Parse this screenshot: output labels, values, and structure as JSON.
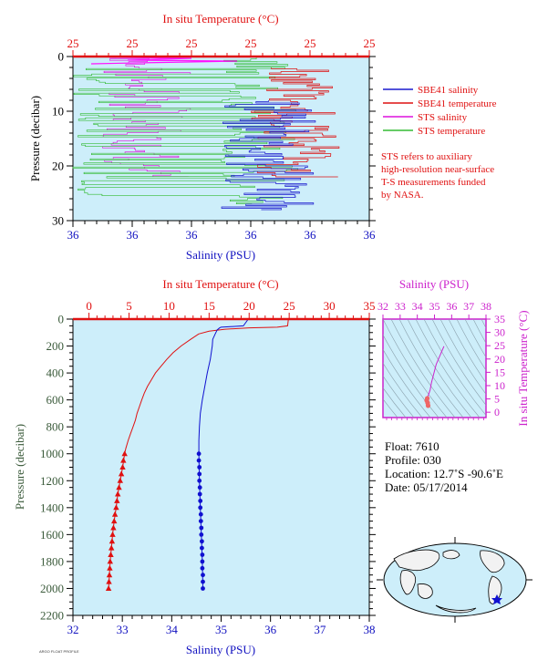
{
  "chart_data": [
    {
      "type": "line",
      "panel": "top-profile",
      "top_axis_label": "In situ Temperature (°C)",
      "top_ticks": [
        "25",
        "25",
        "25",
        "25",
        "25",
        "25"
      ],
      "bottom_axis_label": "Salinity (PSU)",
      "bottom_ticks": [
        "36",
        "36",
        "36",
        "36",
        "36",
        "36"
      ],
      "y_label": "Pressure (decibar)",
      "y_ticks": [
        "0",
        "10",
        "20",
        "30"
      ],
      "ylim": [
        30,
        0
      ],
      "legend": [
        "SBE41 salinity",
        "SBE41 temperature",
        "STS salinity",
        "STS temperature"
      ],
      "legend_colors": [
        "#1a1acd",
        "#dd1111",
        "#dd11dd",
        "#33bb33"
      ],
      "note": [
        "STS refers to auxiliary",
        "high-resolution near-surface",
        "T-S measurements funded",
        "by NASA."
      ]
    },
    {
      "type": "line",
      "panel": "full-profile",
      "top_axis_label": "In situ Temperature (°C)",
      "top_ticks": [
        "0",
        "5",
        "10",
        "15",
        "20",
        "25",
        "30",
        "35"
      ],
      "xlim_temperature": [
        0,
        35
      ],
      "bottom_axis_label": "Salinity (PSU)",
      "bottom_ticks": [
        "32",
        "33",
        "34",
        "35",
        "36",
        "37",
        "38"
      ],
      "xlim_salinity": [
        32,
        38
      ],
      "y_label": "Pressure (decibar)",
      "y_ticks": [
        "0",
        "200",
        "400",
        "600",
        "800",
        "1000",
        "1200",
        "1400",
        "1600",
        "1800",
        "2000",
        "2200"
      ],
      "ylim": [
        2200,
        0
      ],
      "series": [
        {
          "name": "temperature",
          "color": "#e01010",
          "points": [
            [
              24.9,
              0
            ],
            [
              24.8,
              50
            ],
            [
              23.5,
              60
            ],
            [
              20,
              65
            ],
            [
              17,
              75
            ],
            [
              15,
              90
            ],
            [
              13.7,
              110
            ],
            [
              12.7,
              150
            ],
            [
              11.5,
              200
            ],
            [
              10.5,
              250
            ],
            [
              9.7,
              300
            ],
            [
              9,
              350
            ],
            [
              8.3,
              400
            ],
            [
              7.8,
              450
            ],
            [
              7.3,
              500
            ],
            [
              6.9,
              550
            ],
            [
              6.6,
              600
            ],
            [
              6.3,
              650
            ],
            [
              6.0,
              700
            ],
            [
              5.8,
              750
            ],
            [
              5.5,
              800
            ],
            [
              5.2,
              850
            ],
            [
              4.9,
              900
            ],
            [
              4.6,
              960
            ],
            [
              4.45,
              1000
            ],
            [
              4.2,
              1100
            ],
            [
              3.9,
              1200
            ],
            [
              3.6,
              1300
            ],
            [
              3.4,
              1400
            ],
            [
              3.15,
              1500
            ],
            [
              2.95,
              1600
            ],
            [
              2.8,
              1700
            ],
            [
              2.65,
              1800
            ],
            [
              2.55,
              1900
            ],
            [
              2.45,
              2000
            ]
          ],
          "marker_points": [
            [
              4.45,
              1000
            ],
            [
              4.3,
              1050
            ],
            [
              4.2,
              1100
            ],
            [
              4.05,
              1150
            ],
            [
              3.9,
              1200
            ],
            [
              3.75,
              1250
            ],
            [
              3.6,
              1300
            ],
            [
              3.5,
              1350
            ],
            [
              3.4,
              1400
            ],
            [
              3.25,
              1450
            ],
            [
              3.15,
              1500
            ],
            [
              3.05,
              1550
            ],
            [
              2.95,
              1600
            ],
            [
              2.88,
              1650
            ],
            [
              2.8,
              1700
            ],
            [
              2.72,
              1750
            ],
            [
              2.65,
              1800
            ],
            [
              2.6,
              1850
            ],
            [
              2.55,
              1900
            ],
            [
              2.5,
              1950
            ],
            [
              2.45,
              2000
            ]
          ]
        },
        {
          "name": "salinity",
          "color": "#1010d0",
          "points": [
            [
              35.55,
              0
            ],
            [
              35.45,
              50
            ],
            [
              35.0,
              60
            ],
            [
              34.97,
              65
            ],
            [
              34.92,
              80
            ],
            [
              34.88,
              110
            ],
            [
              34.83,
              150
            ],
            [
              34.82,
              200
            ],
            [
              34.8,
              250
            ],
            [
              34.78,
              300
            ],
            [
              34.72,
              400
            ],
            [
              34.67,
              500
            ],
            [
              34.62,
              600
            ],
            [
              34.58,
              700
            ],
            [
              34.56,
              800
            ],
            [
              34.55,
              900
            ],
            [
              34.55,
              1000
            ],
            [
              34.56,
              1200
            ],
            [
              34.58,
              1400
            ],
            [
              34.6,
              1600
            ],
            [
              34.62,
              1800
            ],
            [
              34.63,
              2000
            ]
          ],
          "marker_points": [
            [
              34.55,
              1000
            ],
            [
              34.55,
              1050
            ],
            [
              34.56,
              1100
            ],
            [
              34.56,
              1150
            ],
            [
              34.56,
              1200
            ],
            [
              34.57,
              1250
            ],
            [
              34.57,
              1300
            ],
            [
              34.58,
              1350
            ],
            [
              34.58,
              1400
            ],
            [
              34.59,
              1450
            ],
            [
              34.59,
              1500
            ],
            [
              34.6,
              1550
            ],
            [
              34.6,
              1600
            ],
            [
              34.61,
              1650
            ],
            [
              34.61,
              1700
            ],
            [
              34.62,
              1750
            ],
            [
              34.62,
              1800
            ],
            [
              34.62,
              1850
            ],
            [
              34.63,
              1900
            ],
            [
              34.63,
              1950
            ],
            [
              34.63,
              2000
            ]
          ]
        }
      ]
    },
    {
      "type": "scatter",
      "panel": "ts-diagram",
      "top_axis_label": "Salinity (PSU)",
      "top_ticks": [
        "32",
        "33",
        "34",
        "35",
        "36",
        "37",
        "38"
      ],
      "xlim": [
        32,
        38
      ],
      "right_axis_label": "In situ Temperature (°C)",
      "right_ticks": [
        "0",
        "5",
        "10",
        "15",
        "20",
        "25",
        "30",
        "35"
      ],
      "ylim": [
        -2,
        35
      ],
      "points": [
        [
          35.55,
          24.8
        ],
        [
          35.1,
          18
        ],
        [
          34.9,
          13
        ],
        [
          34.82,
          11
        ],
        [
          34.75,
          8.5
        ],
        [
          34.65,
          6.5
        ],
        [
          34.58,
          5.2
        ],
        [
          34.55,
          4.4
        ],
        [
          34.6,
          3.5
        ],
        [
          34.63,
          2.5
        ]
      ]
    }
  ],
  "float_info": {
    "float": "Float:  7610",
    "profile": "Profile:  030",
    "location": "Location:  12.7˚S  -90.6˚E",
    "date": "Date:  05/17/2014"
  },
  "footer_small": "ARGO FLOAT PROFILE"
}
